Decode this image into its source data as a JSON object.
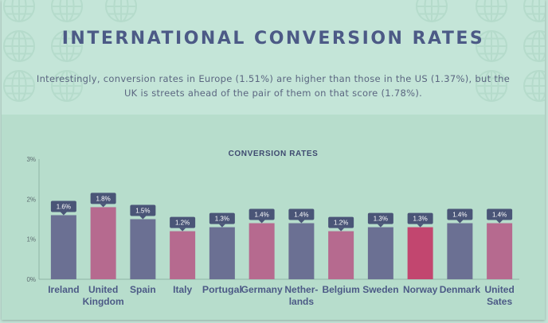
{
  "header": {
    "title": "INTERNATIONAL CONVERSION RATES",
    "intro": "Interestingly, conversion rates in Europe (1.51%) are higher than those in the US (1.37%), but the UK is streets ahead of the pair of them on that score (1.78%)."
  },
  "colors": {
    "background": "#b7ddcc",
    "header_background": "#c4e5d8",
    "title": "#4c5a86",
    "bar_dark": "#6b7093",
    "bar_pink": "#b66a8f",
    "bar_highlight": "#c2466f",
    "label_bg": "#4a5577"
  },
  "chart_data": {
    "type": "bar",
    "title": "CONVERSION RATES",
    "categories": [
      [
        "Ireland"
      ],
      [
        "United",
        "Kingdom"
      ],
      [
        "Spain"
      ],
      [
        "Italy"
      ],
      [
        "Portugal"
      ],
      [
        "Germany"
      ],
      [
        "Nether-",
        "lands"
      ],
      [
        "Belgium"
      ],
      [
        "Sweden"
      ],
      [
        "Norway"
      ],
      [
        "Denmark"
      ],
      [
        "United",
        "Sates"
      ]
    ],
    "values": [
      1.6,
      1.8,
      1.5,
      1.2,
      1.3,
      1.4,
      1.4,
      1.2,
      1.3,
      1.3,
      1.4,
      1.4
    ],
    "value_labels": [
      "1.6%",
      "1.8%",
      "1.5%",
      "1.2%",
      "1.3%",
      "1.4%",
      "1.4%",
      "1.2%",
      "1.3%",
      "1.3%",
      "1.4%",
      "1.4%"
    ],
    "bar_colors": [
      "#6b7093",
      "#b66a8f",
      "#6b7093",
      "#b66a8f",
      "#6b7093",
      "#b66a8f",
      "#6b7093",
      "#b66a8f",
      "#6b7093",
      "#c2466f",
      "#6b7093",
      "#b66a8f"
    ],
    "yticks": [
      0,
      1,
      2,
      3
    ],
    "ytick_labels": [
      "0%",
      "1%",
      "2%",
      "3%"
    ],
    "ylim": [
      0,
      3
    ],
    "xlabel": "",
    "ylabel": "",
    "grid": false,
    "legend": "none"
  }
}
